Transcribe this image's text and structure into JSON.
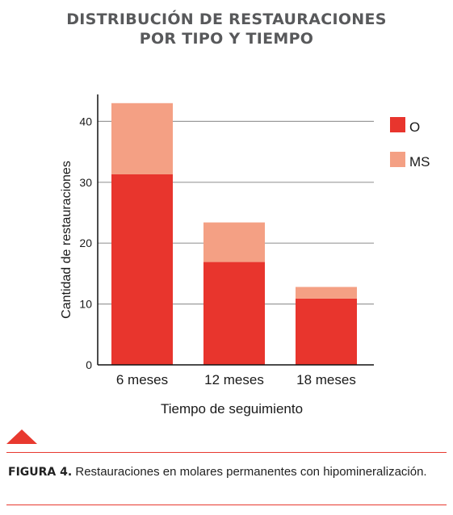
{
  "title_line1": "DISTRIBUCIÓN DE RESTAURACIONES",
  "title_line2": "POR TIPO Y TIEMPO",
  "caption": {
    "label": "FIGURA 4.",
    "text": " Restauraciones en molares permanentes con hipomineralización."
  },
  "chart_data": {
    "type": "bar",
    "stacked": true,
    "categories": [
      "6 meses",
      "12 meses",
      "18 meses"
    ],
    "series": [
      {
        "name": "O",
        "color": "#e8352d",
        "values": [
          31.3,
          16.9,
          10.9
        ]
      },
      {
        "name": "MS",
        "color": "#f4a084",
        "values": [
          11.7,
          6.5,
          1.9
        ]
      }
    ],
    "xlabel": "Tiempo de seguimiento",
    "ylabel": "Cantidad de restauraciones",
    "ylim": [
      0,
      45
    ],
    "yticks": [
      0,
      10,
      20,
      30,
      40
    ],
    "grid": true,
    "legend": "right"
  }
}
